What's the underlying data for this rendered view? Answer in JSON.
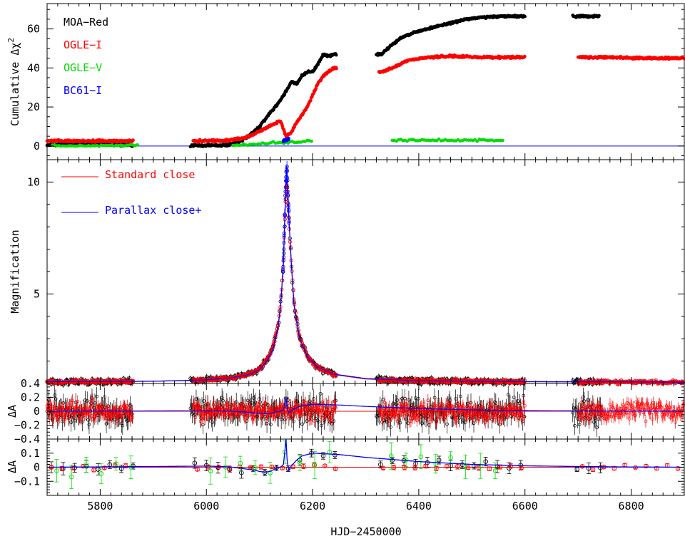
{
  "chart_data": {
    "type": "scatter",
    "xlabel": "HJD−2450000",
    "xlim": [
      5700,
      6900
    ],
    "xticks": [
      "5800",
      "6000",
      "6200",
      "6400",
      "6600",
      "6800"
    ],
    "panels": [
      {
        "id": "chi2",
        "ylabel_prefix": "Cumulative Δχ",
        "ylabel_sup": "2",
        "ylim": [
          -7,
          73
        ],
        "yticks": [
          "0",
          "20",
          "40",
          "60"
        ],
        "legend_position": "top-left",
        "legend": [
          {
            "label": "MOA−Red",
            "color": "#000000"
          },
          {
            "label": "OGLE−I",
            "color": "#ff0000"
          },
          {
            "label": "OGLE−V",
            "color": "#00dd00"
          },
          {
            "label": "BC61−I",
            "color": "#0000ff"
          }
        ],
        "series": [
          {
            "name": "MOA−Red",
            "color": "#000000",
            "x": [
              5700,
              5760,
              5820,
              5870,
              5970,
              6000,
              6040,
              6060,
              6080,
              6100,
              6120,
              6130,
              6140,
              6150,
              6160,
              6170,
              6180,
              6190,
              6200,
              6210,
              6220,
              6230,
              6240,
              6320,
              6330,
              6350,
              6370,
              6400,
              6430,
              6460,
              6490,
              6520,
              6560,
              6600,
              6690,
              6700,
              6740
            ],
            "y": [
              0.5,
              0.8,
              0.8,
              0.2,
              0.2,
              0.3,
              0.4,
              2,
              5,
              10,
              17,
              20,
              24,
              28,
              33,
              32,
              36,
              38,
              38,
              42,
              47,
              46,
              47,
              47,
              47,
              52,
              56,
              59,
              61,
              63,
              65,
              66,
              66.5,
              66.5,
              66.5,
              66.5,
              66.5
            ]
          },
          {
            "name": "OGLE−I",
            "color": "#ff0000",
            "x": [
              5700,
              5760,
              5820,
              5860,
              5980,
              6040,
              6070,
              6090,
              6110,
              6125,
              6140,
              6150,
              6160,
              6170,
              6180,
              6190,
              6200,
              6210,
              6220,
              6230,
              6240,
              6330,
              6350,
              6380,
              6420,
              6460,
              6520,
              6600,
              6700,
              6760,
              6820,
              6900
            ],
            "y": [
              2.5,
              2.6,
              2.5,
              2.6,
              2.5,
              2.8,
              4,
              6,
              9,
              11,
              13,
              5,
              7,
              12,
              16,
              20,
              26,
              32,
              36,
              38,
              40,
              38,
              40,
              44,
              45.5,
              46,
              45.5,
              45.5,
              45.5,
              45.5,
              45,
              45
            ]
          },
          {
            "name": "OGLE−V",
            "color": "#00dd00",
            "x": [
              5710,
              5750,
              5790,
              5830,
              5860,
              6060,
              6080,
              6100,
              6110,
              6120,
              6150,
              6170,
              6190,
              6360,
              6380,
              6420,
              6450,
              6480,
              6520,
              6560
            ],
            "y": [
              0.3,
              0.2,
              0.3,
              0.2,
              0.3,
              0.3,
              0.5,
              1,
              1.4,
              1.6,
              2,
              2.2,
              2.6,
              2.8,
              3,
              2.9,
              3,
              2.9,
              3,
              2.9
            ]
          },
          {
            "name": "BC61−I",
            "color": "#0000ff",
            "x": [
              6145,
              6148,
              6150,
              6152,
              6155
            ],
            "y": [
              2.6,
              3,
              3.2,
              3.4,
              3.8
            ]
          }
        ]
      },
      {
        "id": "magnification",
        "ylabel": "Magnification",
        "ylim": [
          1.0,
          11.0
        ],
        "yticks": [
          "5",
          "10"
        ],
        "legend_position": "top-left",
        "legend": [
          {
            "label": "Standard close",
            "color": "#ff0000"
          },
          {
            "label": "Parallax close+",
            "color": "#0000ff"
          }
        ],
        "models": [
          {
            "name": "Standard close",
            "color": "#ff0000",
            "x": [
              5700,
              5800,
              5900,
              6000,
              6050,
              6080,
              6100,
              6115,
              6125,
              6135,
              6140,
              6145,
              6150,
              6152,
              6155,
              6160,
              6165,
              6175,
              6190,
              6210,
              6240,
              6300,
              6400,
              6600,
              6800,
              6900
            ],
            "y": [
              1.07,
              1.08,
              1.1,
              1.15,
              1.25,
              1.4,
              1.65,
              2.1,
              2.6,
              3.6,
              4.6,
              6.3,
              9.8,
              9.9,
              8.5,
              6.4,
              4.6,
              3.1,
              2.2,
              1.7,
              1.4,
              1.2,
              1.12,
              1.08,
              1.07,
              1.06
            ]
          },
          {
            "name": "Parallax close+",
            "color": "#0000ff",
            "x": [
              5700,
              5800,
              5900,
              6000,
              6050,
              6080,
              6100,
              6115,
              6125,
              6135,
              6140,
              6145,
              6150,
              6152,
              6155,
              6160,
              6165,
              6175,
              6190,
              6210,
              6240,
              6300,
              6400,
              6600,
              6800,
              6900
            ],
            "y": [
              1.08,
              1.09,
              1.1,
              1.16,
              1.26,
              1.4,
              1.62,
              2.05,
              2.5,
              3.5,
              4.5,
              6.4,
              10.2,
              10.4,
              8.6,
              6.3,
              4.5,
              3.05,
              2.2,
              1.72,
              1.42,
              1.22,
              1.12,
              1.08,
              1.07,
              1.06
            ]
          }
        ]
      },
      {
        "id": "residual1",
        "ylabel": "ΔA",
        "ylim": [
          -0.4,
          0.4
        ],
        "yticks": [
          "0.4",
          "0.2",
          "0",
          "−0.2",
          "−0.4"
        ]
      },
      {
        "id": "residual2",
        "ylabel": "ΔA",
        "ylim": [
          -0.2,
          0.2
        ],
        "yticks": [
          "0.1",
          "0",
          "−0.1"
        ],
        "model": {
          "color": "#0000ff",
          "x": [
            5700,
            5900,
            6000,
            6030,
            6050,
            6070,
            6090,
            6100,
            6110,
            6120,
            6130,
            6140,
            6145,
            6148,
            6150,
            6152,
            6155,
            6160,
            6170,
            6180,
            6200,
            6250,
            6300,
            6400,
            6500,
            6600,
            6700,
            6800,
            6900
          ],
          "y": [
            0,
            0.005,
            0.008,
            0.005,
            0,
            -0.01,
            -0.02,
            -0.03,
            -0.035,
            -0.03,
            -0.01,
            0,
            0.02,
            0.12,
            0.2,
            0.05,
            -0.02,
            0.01,
            0.05,
            0.08,
            0.1,
            0.09,
            0.07,
            0.04,
            0.02,
            0.01,
            0.005,
            0.002,
            0
          ]
        }
      }
    ]
  }
}
